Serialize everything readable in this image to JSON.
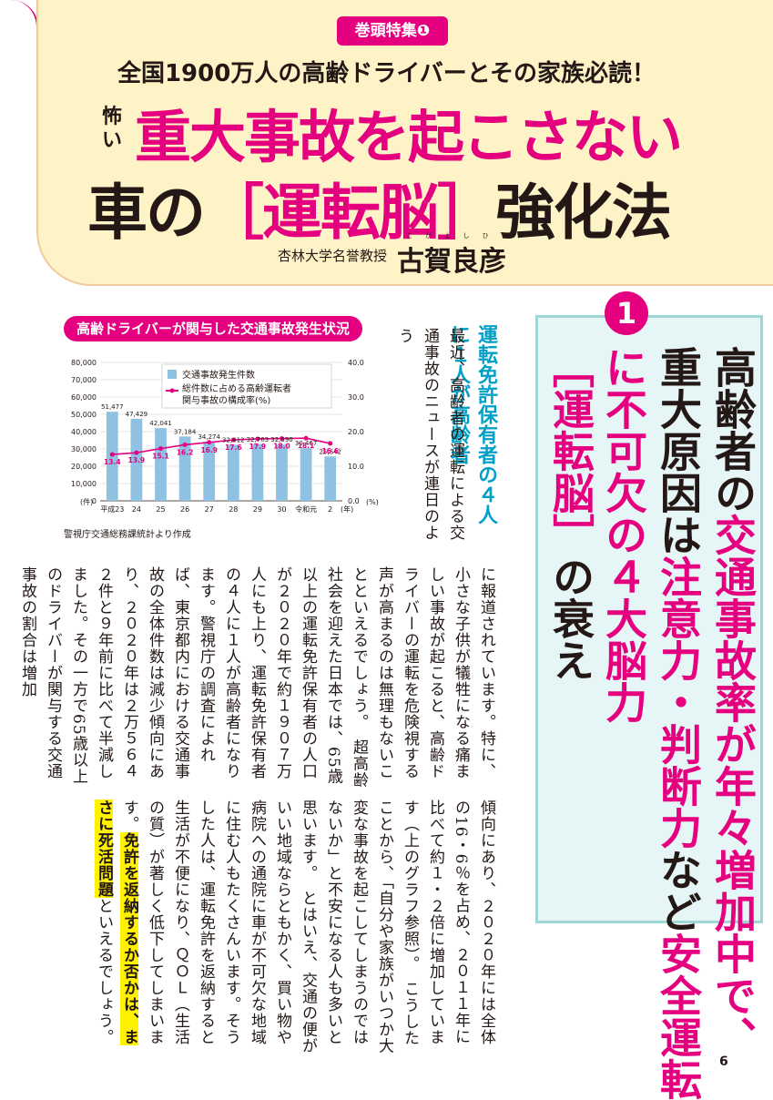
{
  "header": {
    "tag": "巻頭特集❶",
    "subtitle": "全国1900万人の高齢ドライバーとその家族必読！",
    "scary": "怖い",
    "title_line1": "重大事故を起こさない",
    "title_line2_pre": "車の",
    "title_line2_mid": "［運転脳］",
    "title_line2_post": "強化法",
    "affiliation": "杏林大学名誉教授",
    "author": "古賀良彦",
    "author_ruby": "こがよしひこ"
  },
  "headline": {
    "number": "1",
    "line1": "高齢者の",
    "line1b": "交通事故率が年々増加中で、",
    "line2": "重大原因は",
    "line2b": "注意力・判断力",
    "line2c": "など",
    "line2d": "安全運転",
    "line3": "に不可欠の４大脳力",
    "line4": "［運転脳］",
    "line4b": "の衰え"
  },
  "chart_title": "高齢ドライバーが関与した交通事故発生状況",
  "chart_source": "警視庁交通総務課統計より作成",
  "chart_data": {
    "type": "bar",
    "categories": [
      "平成23",
      "24",
      "25",
      "26",
      "27",
      "28",
      "29",
      "30",
      "令和元",
      "2"
    ],
    "x_unit": "(年)",
    "series": [
      {
        "name": "交通事故発生件数",
        "type": "bar",
        "axis": "left",
        "values": [
          51477,
          47429,
          42041,
          37184,
          34274,
          32412,
          32763,
          32590,
          30467,
          25642
        ],
        "labels": [
          "51,477",
          "47,429",
          "42,041",
          "37,184",
          "34,274",
          "32,412",
          "32,763",
          "32,590",
          "30,467",
          "25,642"
        ]
      },
      {
        "name": "総件数に占める高齢運転者関与事故の構成率(%)",
        "type": "line",
        "axis": "right",
        "values": [
          13.4,
          13.9,
          15.1,
          16.2,
          16.9,
          17.6,
          17.9,
          18.0,
          18.1,
          16.6
        ]
      }
    ],
    "ylim_left": [
      0,
      80000
    ],
    "yticks_left": [
      "80,000",
      "70,000",
      "60,000",
      "50,000",
      "40,000",
      "30,000",
      "20,000",
      "10,000",
      "0"
    ],
    "yunit_left": "(件)",
    "ylim_right": [
      0,
      40
    ],
    "yticks_right": [
      "40.0",
      "30.0",
      "20.0",
      "10.0",
      "0.0"
    ],
    "yunit_right": "(%)",
    "colors": {
      "bar": "#8fc1e3",
      "line": "#e4007f"
    }
  },
  "legend": {
    "bar": "交通事故発生件数",
    "line1": "総件数に占める高齢運転者",
    "line2": "関与事故の構成率(%)"
  },
  "section_heading": "運転免許保有者の４人に１人が高齢者",
  "intro_text": "最近、高齢者の運転による交通事故のニュースが連日のよう",
  "body1": "に報道されています。特に、小さな子供が犠牲になる痛ましい事故が起こると、高齢ドライバーの運転を危険視する声が高まるのは無理もないことといえるでしょう。　超高齢社会を迎えた日本では、65歳以上の運転免許保有者の人口が２０２０年で約１９０７万人にも上り、運転免許保有者の４人に１人が高齢者になります。警視庁の調査によれば、東京都内における交通事故の全体件数は減少傾向にあり、２０２０年は２万５６４２件と９年前に比べて半減しました。その一方で65歳以上のドライバーが関与する交通事故の割合は増加",
  "body2_pre": "傾向にあり、２０２０年には全体の16・6％を占め、２０１１年に比べて約１・２倍に増加しています（上のグラフ参照）。　こうしたことから、「自分や家族がいつか大変な事故を起こしてしまうのではないか」と不安になる人も多いと思います。　とはいえ、交通の便がいい地域ならともかく、買い物や病院への通院に車が不可欠な地域に住む人もたくさんいます。そうした人は、運転免許を返納すると生活が不便になり、ＱＯＬ（生活の質）が著しく低下してしまいます。",
  "body2_hl1": "免許を返納するか",
  "body2_hl2": "否かは、まさに死活問題",
  "body2_post": "といえるでしょう。",
  "page_number": "6"
}
